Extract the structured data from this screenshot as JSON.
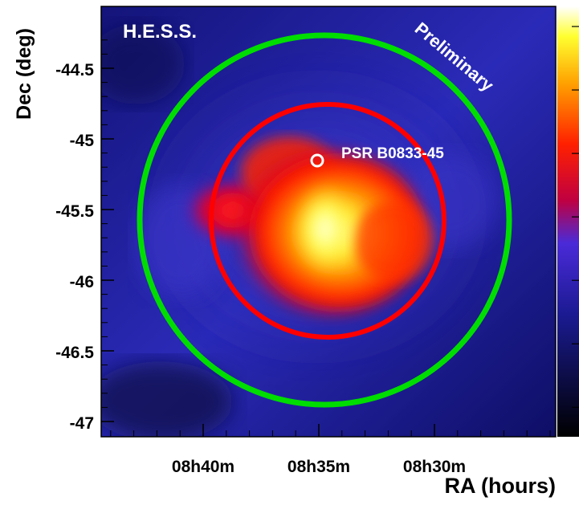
{
  "chart_data": {
    "type": "heatmap",
    "title": "",
    "xlabel": "RA (hours)",
    "ylabel": "Dec (deg)",
    "x_ticks": [
      "08h40m",
      "08h35m",
      "08h30m"
    ],
    "y_ticks": [
      "-44.5",
      "-45",
      "-45.5",
      "-46",
      "-46.5",
      "-47"
    ],
    "y_tick_values": [
      -44.5,
      -45,
      -45.5,
      -46,
      -46.5,
      -47
    ],
    "ylim": [
      -47.1,
      -44.2
    ],
    "x_inverted": true,
    "grid": false,
    "colormap": "black-blue-red-yellow-white",
    "colorbar": {
      "placement": "right",
      "tick_count": 7,
      "labels_visible": false
    },
    "annotations": {
      "instrument": "H.E.S.S.",
      "status": "Preliminary",
      "source": "PSR B0833-45"
    },
    "source_position": {
      "ra": "08h35m",
      "dec": -45.18
    },
    "regions": [
      {
        "shape": "circle",
        "color": "#ff0000",
        "ra_center": "08h35m",
        "dec_center": -45.6,
        "radius_deg": 0.8
      },
      {
        "shape": "circle",
        "color": "#00dd00",
        "ra_center": "08h35m",
        "dec_center": -45.6,
        "radius_deg": 1.2
      }
    ],
    "emission_peak": {
      "ra": "08h35m",
      "dec": -45.6
    }
  },
  "colors": {
    "background": "#0d0d5c",
    "inner_circle": "#ff0000",
    "outer_circle": "#00dd00",
    "pulsar_marker": "#ffffff",
    "axis_text": "#000000"
  }
}
